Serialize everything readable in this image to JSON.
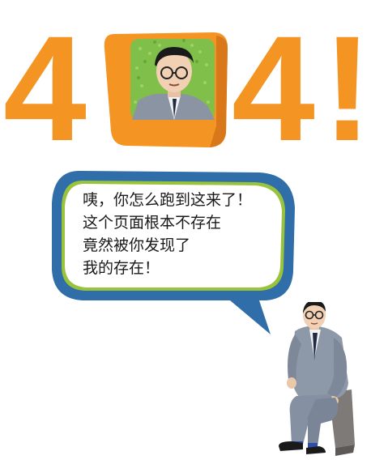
{
  "error": {
    "code_first_digit": "4",
    "code_last_digit": "4",
    "exclamation": "!"
  },
  "message": {
    "lines": [
      "咦，你怎么跑到这来了！",
      "这个页面根本不存在",
      "竟然被你发现了",
      "我的存在！"
    ]
  },
  "colors": {
    "orange": "#f39423",
    "bubble_border": "#2f6ea8",
    "bubble_inner_border": "#9ac33c",
    "tv_screen": "#7fbf4a"
  },
  "icons": {
    "tv_zero": "tv-zero-icon",
    "sitting_man": "sitting-man-illustration"
  }
}
